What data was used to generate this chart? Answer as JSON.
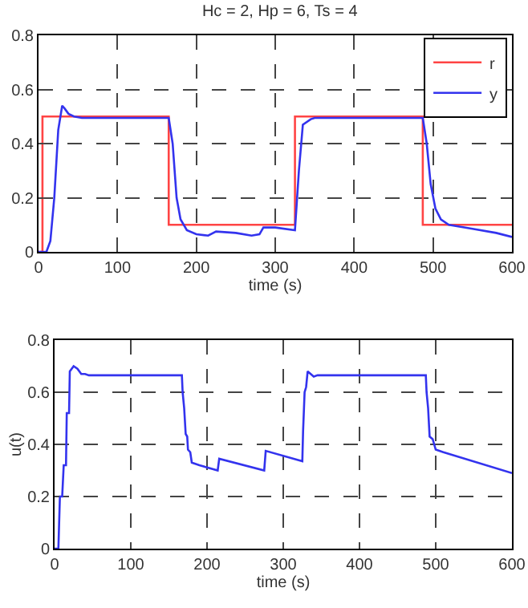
{
  "chart_data": [
    {
      "type": "line",
      "title": "Hc = 2, Hp = 6, Ts = 4",
      "xlabel": "time (s)",
      "xlim": [
        0,
        600
      ],
      "xticks": [
        0,
        100,
        200,
        300,
        400,
        500,
        600
      ],
      "ylim": [
        0,
        0.8
      ],
      "yticks": [
        0,
        0.2,
        0.4,
        0.6,
        0.8
      ],
      "grid": true,
      "legend": "top right",
      "series": [
        {
          "name": "r",
          "type": "step",
          "color": "#ff4444",
          "x": [
            0,
            5,
            165,
            325,
            487,
            600
          ],
          "values": [
            0,
            0.5,
            0.1,
            0.5,
            0.1,
            0.1
          ]
        },
        {
          "name": "y",
          "type": "line",
          "color": "#3333ee",
          "x": [
            0,
            10,
            15,
            20,
            25,
            30,
            33,
            38,
            45,
            55,
            100,
            165,
            170,
            175,
            180,
            188,
            200,
            215,
            225,
            250,
            270,
            280,
            285,
            300,
            325,
            330,
            335,
            345,
            350,
            487,
            492,
            497,
            503,
            510,
            520,
            550,
            580,
            600
          ],
          "values": [
            0,
            0,
            0.04,
            0.2,
            0.45,
            0.54,
            0.53,
            0.51,
            0.5,
            0.495,
            0.495,
            0.495,
            0.4,
            0.2,
            0.12,
            0.08,
            0.065,
            0.06,
            0.075,
            0.07,
            0.06,
            0.065,
            0.09,
            0.09,
            0.08,
            0.3,
            0.47,
            0.49,
            0.495,
            0.495,
            0.4,
            0.25,
            0.16,
            0.12,
            0.1,
            0.085,
            0.07,
            0.055
          ]
        }
      ]
    },
    {
      "type": "line",
      "xlabel": "time (s)",
      "ylabel": "u(t)",
      "xlim": [
        0,
        600
      ],
      "xticks": [
        0,
        100,
        200,
        300,
        400,
        500,
        600
      ],
      "ylim": [
        0,
        0.8
      ],
      "yticks": [
        0,
        0.2,
        0.4,
        0.6,
        0.8
      ],
      "grid": true,
      "series": [
        {
          "color": "#3333ee",
          "x": [
            0,
            5,
            7,
            10,
            12,
            15,
            16,
            19,
            20,
            25,
            30,
            35,
            40,
            45,
            167,
            168,
            170,
            172,
            174,
            175,
            178,
            180,
            190,
            214,
            216,
            275,
            277,
            325,
            326,
            328,
            330,
            332,
            336,
            340,
            345,
            487,
            488,
            490,
            492,
            496,
            498,
            500,
            510,
            600
          ],
          "values": [
            0,
            0,
            0.2,
            0.2,
            0.32,
            0.32,
            0.52,
            0.52,
            0.68,
            0.7,
            0.69,
            0.67,
            0.67,
            0.665,
            0.665,
            0.6,
            0.54,
            0.44,
            0.43,
            0.38,
            0.37,
            0.33,
            0.32,
            0.3,
            0.345,
            0.3,
            0.375,
            0.335,
            0.45,
            0.6,
            0.62,
            0.68,
            0.67,
            0.66,
            0.665,
            0.665,
            0.6,
            0.54,
            0.43,
            0.42,
            0.4,
            0.38,
            0.37,
            0.29
          ]
        }
      ]
    }
  ]
}
